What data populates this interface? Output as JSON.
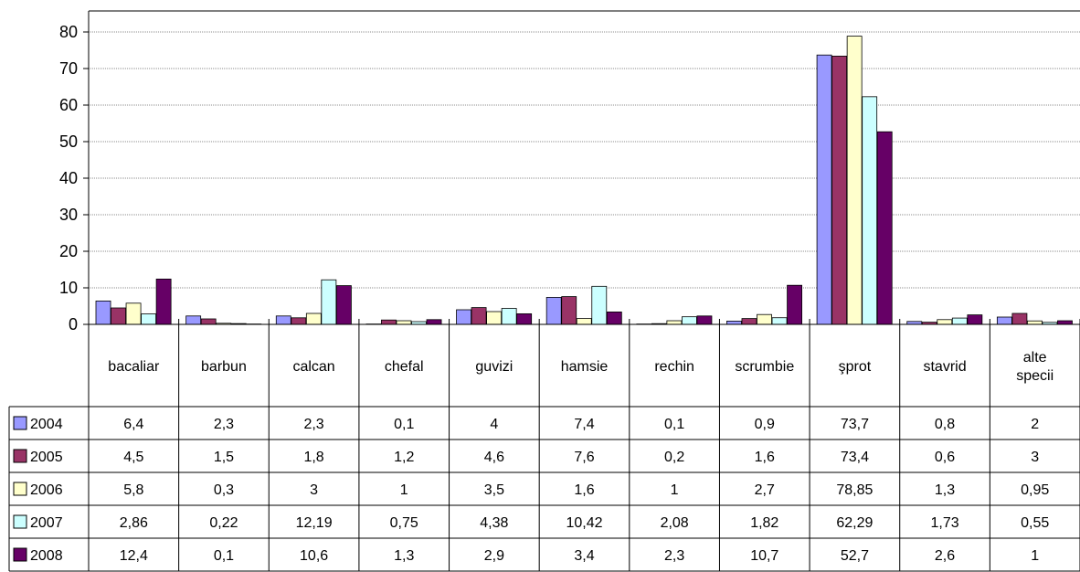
{
  "chart_data": {
    "type": "bar",
    "title": "",
    "xlabel": "",
    "ylabel": "",
    "ylim": [
      0,
      80
    ],
    "yticks": [
      0,
      10,
      20,
      30,
      40,
      50,
      60,
      70,
      80
    ],
    "grid": true,
    "legend_placement": "data-table-left",
    "categories": [
      "bacaliar",
      "barbun",
      "calcan",
      "chefal",
      "guvizi",
      "hamsie",
      "rechin",
      "scrumbie",
      "şprot",
      "stavrid",
      "alte specii"
    ],
    "series": [
      {
        "name": "2004",
        "color": "#9999ff",
        "values": [
          6.4,
          2.3,
          2.3,
          0.1,
          4,
          7.4,
          0.1,
          0.9,
          73.7,
          0.8,
          2
        ],
        "labels": [
          "6,4",
          "2,3",
          "2,3",
          "0,1",
          "4",
          "7,4",
          "0,1",
          "0,9",
          "73,7",
          "0,8",
          "2"
        ]
      },
      {
        "name": "2005",
        "color": "#993366",
        "values": [
          4.5,
          1.5,
          1.8,
          1.2,
          4.6,
          7.6,
          0.2,
          1.6,
          73.4,
          0.6,
          3
        ],
        "labels": [
          "4,5",
          "1,5",
          "1,8",
          "1,2",
          "4,6",
          "7,6",
          "0,2",
          "1,6",
          "73,4",
          "0,6",
          "3"
        ]
      },
      {
        "name": "2006",
        "color": "#ffffcc",
        "values": [
          5.8,
          0.3,
          3,
          1,
          3.5,
          1.6,
          1,
          2.7,
          78.85,
          1.3,
          0.95
        ],
        "labels": [
          "5,8",
          "0,3",
          "3",
          "1",
          "3,5",
          "1,6",
          "1",
          "2,7",
          "78,85",
          "1,3",
          "0,95"
        ]
      },
      {
        "name": "2007",
        "color": "#ccffff",
        "values": [
          2.86,
          0.22,
          12.19,
          0.75,
          4.38,
          10.42,
          2.08,
          1.82,
          62.29,
          1.73,
          0.55
        ],
        "labels": [
          "2,86",
          "0,22",
          "12,19",
          "0,75",
          "4,38",
          "10,42",
          "2,08",
          "1,82",
          "62,29",
          "1,73",
          "0,55"
        ]
      },
      {
        "name": "2008",
        "color": "#660066",
        "values": [
          12.4,
          0.1,
          10.6,
          1.3,
          2.9,
          3.4,
          2.3,
          10.7,
          52.7,
          2.6,
          1
        ],
        "labels": [
          "12,4",
          "0,1",
          "10,6",
          "1,3",
          "2,9",
          "3,4",
          "2,3",
          "10,7",
          "52,7",
          "2,6",
          "1"
        ]
      }
    ]
  }
}
